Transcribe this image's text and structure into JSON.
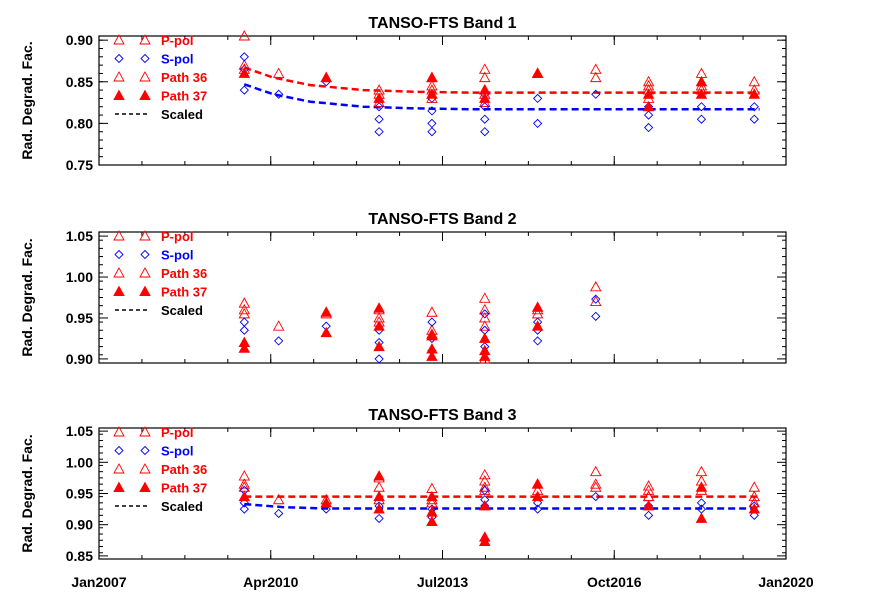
{
  "colors": {
    "p": "#ff0000",
    "s": "#0000ff",
    "scaled": "#000000"
  },
  "legend": [
    "P-pol",
    "S-pol",
    "Path 36",
    "Path 37",
    "Scaled"
  ],
  "x_ticks": [
    "Jan2007",
    "Apr2010",
    "Jul2013",
    "Oct2016",
    "Jan2020"
  ],
  "chart_data": [
    {
      "type": "scatter",
      "title": "TANSO-FTS Band 1",
      "ylabel": "Rad. Degrad. Fac.",
      "xlim": [
        2007.0,
        2020.0
      ],
      "ylim": [
        0.75,
        0.905
      ],
      "yticks": [
        "0.75",
        "0.80",
        "0.85",
        "0.90"
      ],
      "yticks_values": [
        0.75,
        0.8,
        0.85,
        0.9
      ],
      "series": [
        {
          "name": "P-pol",
          "points": [
            [
              2009.75,
              0.905
            ],
            [
              2009.75,
              0.87
            ],
            [
              2010.4,
              0.86
            ],
            [
              2011.3,
              0.855
            ],
            [
              2012.3,
              0.84
            ],
            [
              2012.3,
              0.825
            ],
            [
              2013.3,
              0.855
            ],
            [
              2013.3,
              0.845
            ],
            [
              2013.3,
              0.83
            ],
            [
              2014.3,
              0.865
            ],
            [
              2014.3,
              0.855
            ],
            [
              2014.3,
              0.84
            ],
            [
              2014.3,
              0.825
            ],
            [
              2015.3,
              0.86
            ],
            [
              2016.4,
              0.865
            ],
            [
              2016.4,
              0.855
            ],
            [
              2017.4,
              0.85
            ],
            [
              2017.4,
              0.84
            ],
            [
              2017.4,
              0.83
            ],
            [
              2018.4,
              0.86
            ],
            [
              2018.4,
              0.845
            ],
            [
              2019.4,
              0.85
            ]
          ]
        },
        {
          "name": "S-pol",
          "points": [
            [
              2009.75,
              0.88
            ],
            [
              2009.75,
              0.865
            ],
            [
              2009.75,
              0.84
            ],
            [
              2010.4,
              0.835
            ],
            [
              2011.3,
              0.85
            ],
            [
              2012.3,
              0.82
            ],
            [
              2012.3,
              0.805
            ],
            [
              2012.3,
              0.79
            ],
            [
              2013.3,
              0.83
            ],
            [
              2013.3,
              0.815
            ],
            [
              2013.3,
              0.8
            ],
            [
              2013.3,
              0.79
            ],
            [
              2014.3,
              0.835
            ],
            [
              2014.3,
              0.82
            ],
            [
              2014.3,
              0.805
            ],
            [
              2014.3,
              0.79
            ],
            [
              2015.3,
              0.83
            ],
            [
              2015.3,
              0.8
            ],
            [
              2016.4,
              0.835
            ],
            [
              2017.4,
              0.82
            ],
            [
              2017.4,
              0.81
            ],
            [
              2017.4,
              0.795
            ],
            [
              2018.4,
              0.82
            ],
            [
              2018.4,
              0.805
            ],
            [
              2019.4,
              0.82
            ],
            [
              2019.4,
              0.805
            ]
          ]
        },
        {
          "name": "Path 36",
          "points": [
            [
              2009.75,
              0.865
            ],
            [
              2012.3,
              0.835
            ],
            [
              2013.3,
              0.84
            ],
            [
              2014.3,
              0.835
            ],
            [
              2015.3,
              0.86
            ],
            [
              2017.4,
              0.845
            ],
            [
              2018.4,
              0.84
            ],
            [
              2019.4,
              0.84
            ]
          ]
        },
        {
          "name": "Path 37",
          "points": [
            [
              2009.75,
              0.86
            ],
            [
              2011.3,
              0.855
            ],
            [
              2012.3,
              0.83
            ],
            [
              2013.3,
              0.855
            ],
            [
              2013.3,
              0.835
            ],
            [
              2014.3,
              0.84
            ],
            [
              2014.3,
              0.83
            ],
            [
              2015.3,
              0.86
            ],
            [
              2017.4,
              0.835
            ],
            [
              2017.4,
              0.82
            ],
            [
              2018.4,
              0.85
            ],
            [
              2018.4,
              0.835
            ],
            [
              2019.4,
              0.835
            ]
          ]
        }
      ],
      "scaled_lines": [
        {
          "color": "p",
          "points": [
            [
              2009.75,
              0.867
            ],
            [
              2010.3,
              0.855
            ],
            [
              2011.0,
              0.846
            ],
            [
              2012.0,
              0.84
            ],
            [
              2013.0,
              0.838
            ],
            [
              2014.0,
              0.837
            ],
            [
              2019.5,
              0.837
            ]
          ]
        },
        {
          "color": "s",
          "points": [
            [
              2009.75,
              0.847
            ],
            [
              2010.3,
              0.835
            ],
            [
              2011.0,
              0.826
            ],
            [
              2012.0,
              0.82
            ],
            [
              2013.0,
              0.818
            ],
            [
              2014.0,
              0.817
            ],
            [
              2019.5,
              0.817
            ]
          ]
        }
      ]
    },
    {
      "type": "scatter",
      "title": "TANSO-FTS Band 2",
      "ylabel": "Rad. Degrad. Fac.",
      "xlim": [
        2007.0,
        2020.0
      ],
      "ylim": [
        0.895,
        1.055
      ],
      "yticks": [
        "0.90",
        "0.95",
        "1.00",
        "1.05"
      ],
      "yticks_values": [
        0.9,
        0.95,
        1.0,
        1.05
      ],
      "series": [
        {
          "name": "P-pol",
          "points": [
            [
              2009.75,
              0.968
            ],
            [
              2009.75,
              0.955
            ],
            [
              2010.4,
              0.94
            ],
            [
              2011.3,
              0.955
            ],
            [
              2012.3,
              0.96
            ],
            [
              2012.3,
              0.945
            ],
            [
              2013.3,
              0.957
            ],
            [
              2013.3,
              0.935
            ],
            [
              2014.3,
              0.974
            ],
            [
              2014.3,
              0.96
            ],
            [
              2014.3,
              0.94
            ],
            [
              2014.3,
              0.9
            ],
            [
              2015.3,
              0.96
            ],
            [
              2016.4,
              0.988
            ],
            [
              2016.4,
              0.97
            ]
          ]
        },
        {
          "name": "S-pol",
          "points": [
            [
              2009.75,
              0.945
            ],
            [
              2009.75,
              0.935
            ],
            [
              2010.4,
              0.922
            ],
            [
              2011.3,
              0.94
            ],
            [
              2012.3,
              0.935
            ],
            [
              2012.3,
              0.92
            ],
            [
              2012.3,
              0.9
            ],
            [
              2013.3,
              0.945
            ],
            [
              2013.3,
              0.925
            ],
            [
              2013.3,
              0.91
            ],
            [
              2014.3,
              0.955
            ],
            [
              2014.3,
              0.935
            ],
            [
              2014.3,
              0.915
            ],
            [
              2015.3,
              0.945
            ],
            [
              2015.3,
              0.935
            ],
            [
              2015.3,
              0.922
            ],
            [
              2016.4,
              0.973
            ],
            [
              2016.4,
              0.952
            ]
          ]
        },
        {
          "name": "Path 36",
          "points": [
            [
              2009.75,
              0.96
            ],
            [
              2012.3,
              0.95
            ],
            [
              2013.3,
              0.93
            ],
            [
              2014.3,
              0.95
            ],
            [
              2015.3,
              0.955
            ]
          ]
        },
        {
          "name": "Path 37",
          "points": [
            [
              2009.75,
              0.92
            ],
            [
              2009.75,
              0.913
            ],
            [
              2011.3,
              0.957
            ],
            [
              2011.3,
              0.932
            ],
            [
              2012.3,
              0.962
            ],
            [
              2012.3,
              0.94
            ],
            [
              2012.3,
              0.915
            ],
            [
              2013.3,
              0.928
            ],
            [
              2013.3,
              0.912
            ],
            [
              2013.3,
              0.903
            ],
            [
              2014.3,
              0.925
            ],
            [
              2014.3,
              0.91
            ],
            [
              2014.3,
              0.903
            ],
            [
              2015.3,
              0.963
            ],
            [
              2015.3,
              0.94
            ]
          ]
        }
      ],
      "scaled_lines": []
    },
    {
      "type": "scatter",
      "title": "TANSO-FTS Band 3",
      "ylabel": "Rad. Degrad. Fac.",
      "xlim": [
        2007.0,
        2020.0
      ],
      "ylim": [
        0.845,
        1.055
      ],
      "yticks": [
        "0.85",
        "0.90",
        "0.95",
        "1.00",
        "1.05"
      ],
      "yticks_values": [
        0.85,
        0.9,
        0.95,
        1.0,
        1.05
      ],
      "series": [
        {
          "name": "P-pol",
          "points": [
            [
              2009.75,
              0.978
            ],
            [
              2009.75,
              0.965
            ],
            [
              2010.4,
              0.94
            ],
            [
              2011.3,
              0.94
            ],
            [
              2012.3,
              0.975
            ],
            [
              2012.3,
              0.96
            ],
            [
              2013.3,
              0.958
            ],
            [
              2013.3,
              0.94
            ],
            [
              2014.3,
              0.98
            ],
            [
              2014.3,
              0.97
            ],
            [
              2014.3,
              0.955
            ],
            [
              2015.3,
              0.965
            ],
            [
              2016.4,
              0.985
            ],
            [
              2016.4,
              0.965
            ],
            [
              2017.4,
              0.962
            ],
            [
              2017.4,
              0.955
            ],
            [
              2017.4,
              0.945
            ],
            [
              2018.4,
              0.985
            ],
            [
              2018.4,
              0.97
            ],
            [
              2019.4,
              0.96
            ],
            [
              2019.4,
              0.945
            ]
          ]
        },
        {
          "name": "S-pol",
          "points": [
            [
              2009.75,
              0.955
            ],
            [
              2009.75,
              0.935
            ],
            [
              2009.75,
              0.925
            ],
            [
              2010.4,
              0.918
            ],
            [
              2011.3,
              0.925
            ],
            [
              2012.3,
              0.93
            ],
            [
              2012.3,
              0.91
            ],
            [
              2013.3,
              0.925
            ],
            [
              2013.3,
              0.912
            ],
            [
              2014.3,
              0.955
            ],
            [
              2014.3,
              0.94
            ],
            [
              2014.3,
              0.93
            ],
            [
              2015.3,
              0.935
            ],
            [
              2015.3,
              0.925
            ],
            [
              2016.4,
              0.945
            ],
            [
              2017.4,
              0.93
            ],
            [
              2017.4,
              0.915
            ],
            [
              2018.4,
              0.935
            ],
            [
              2018.4,
              0.925
            ],
            [
              2019.4,
              0.93
            ],
            [
              2019.4,
              0.915
            ]
          ]
        },
        {
          "name": "Path 36",
          "points": [
            [
              2009.75,
              0.96
            ],
            [
              2012.3,
              0.94
            ],
            [
              2013.3,
              0.935
            ],
            [
              2014.3,
              0.96
            ],
            [
              2015.3,
              0.955
            ],
            [
              2016.4,
              0.96
            ],
            [
              2017.4,
              0.945
            ],
            [
              2018.4,
              0.955
            ],
            [
              2019.4,
              0.935
            ]
          ]
        },
        {
          "name": "Path 37",
          "points": [
            [
              2009.75,
              0.945
            ],
            [
              2011.3,
              0.935
            ],
            [
              2012.3,
              0.978
            ],
            [
              2012.3,
              0.945
            ],
            [
              2012.3,
              0.925
            ],
            [
              2013.3,
              0.945
            ],
            [
              2013.3,
              0.92
            ],
            [
              2013.3,
              0.905
            ],
            [
              2014.3,
              0.93
            ],
            [
              2014.3,
              0.88
            ],
            [
              2014.3,
              0.873
            ],
            [
              2015.3,
              0.965
            ],
            [
              2015.3,
              0.945
            ],
            [
              2017.4,
              0.93
            ],
            [
              2018.4,
              0.96
            ],
            [
              2018.4,
              0.91
            ],
            [
              2019.4,
              0.925
            ]
          ]
        }
      ],
      "scaled_lines": [
        {
          "color": "p",
          "points": [
            [
              2009.75,
              0.945
            ],
            [
              2019.5,
              0.945
            ]
          ]
        },
        {
          "color": "s",
          "points": [
            [
              2009.75,
              0.933
            ],
            [
              2010.5,
              0.928
            ],
            [
              2011.3,
              0.926
            ],
            [
              2019.5,
              0.926
            ]
          ]
        }
      ]
    }
  ]
}
